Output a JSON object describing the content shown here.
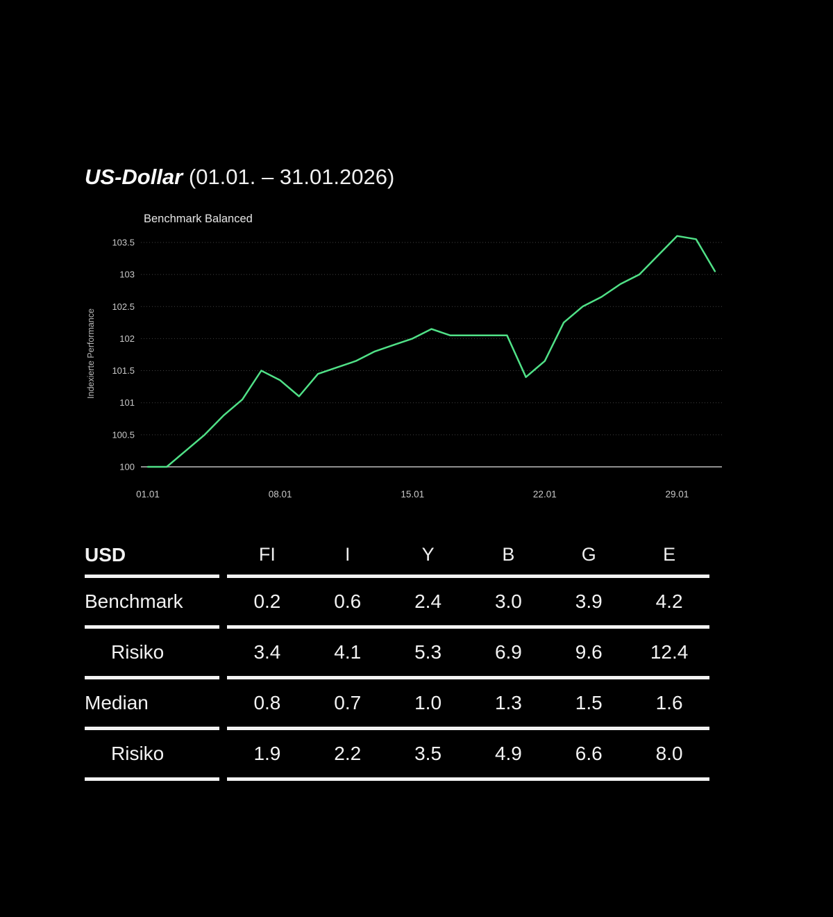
{
  "header": {
    "title_main": "US-Dollar",
    "title_period": "(01.01. – 31.01.2026)"
  },
  "chart": {
    "legend_label": "Benchmark Balanced",
    "y_axis_title": "Indexierte Performance"
  },
  "chart_data": {
    "type": "line",
    "title": "Benchmark Balanced",
    "ylabel": "Indexierte Performance",
    "x_unit": "day of January 2026",
    "x": [
      1,
      2,
      3,
      4,
      5,
      6,
      7,
      8,
      9,
      10,
      11,
      12,
      13,
      14,
      15,
      16,
      17,
      18,
      19,
      20,
      21,
      22,
      23,
      24,
      25,
      26,
      27,
      28,
      29,
      30,
      31
    ],
    "series": [
      {
        "name": "Benchmark Balanced",
        "values": [
          100.0,
          100.0,
          100.25,
          100.5,
          100.8,
          101.05,
          101.5,
          101.35,
          101.1,
          101.45,
          101.55,
          101.65,
          101.8,
          101.9,
          102.0,
          102.15,
          102.05,
          102.05,
          102.05,
          102.05,
          101.4,
          101.65,
          102.25,
          102.5,
          102.65,
          102.85,
          103.0,
          103.3,
          103.6,
          103.55,
          103.05
        ]
      }
    ],
    "x_ticks": [
      {
        "day": 1,
        "label": "01.01"
      },
      {
        "day": 8,
        "label": "08.01"
      },
      {
        "day": 15,
        "label": "15.01"
      },
      {
        "day": 22,
        "label": "22.01"
      },
      {
        "day": 29,
        "label": "29.01"
      }
    ],
    "y_ticks": [
      100,
      100.5,
      101,
      101.5,
      102,
      102.5,
      103,
      103.5
    ],
    "ylim": [
      100,
      103.75
    ],
    "baseline_value": 100,
    "grid": "horizontal-dotted",
    "legend_position": "top-left",
    "line_color": "#50e187",
    "baseline_color": "#8f8f8f",
    "gridline_color": "#434343",
    "tick_label_color": "#c9c9c9"
  },
  "table": {
    "corner_label": "USD",
    "columns": [
      "FI",
      "I",
      "Y",
      "B",
      "G",
      "E"
    ],
    "rows": [
      {
        "label": "Benchmark",
        "values": [
          "0.2",
          "0.6",
          "2.4",
          "3.0",
          "3.9",
          "4.2"
        ]
      },
      {
        "label": "Risiko",
        "values": [
          "3.4",
          "4.1",
          "5.3",
          "6.9",
          "9.6",
          "12.4"
        ]
      },
      {
        "label": "Median",
        "values": [
          "0.8",
          "0.7",
          "1.0",
          "1.3",
          "1.5",
          "1.6"
        ]
      },
      {
        "label": "Risiko",
        "values": [
          "1.9",
          "2.2",
          "3.5",
          "4.9",
          "6.6",
          "8.0"
        ]
      }
    ]
  }
}
